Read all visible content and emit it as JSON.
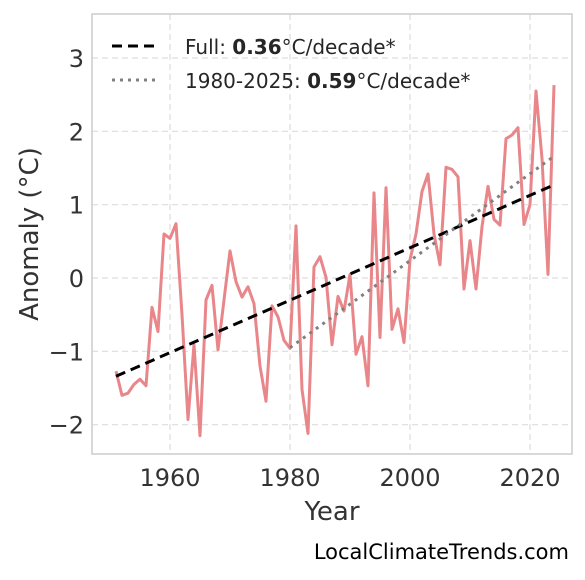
{
  "chart_data": {
    "type": "line",
    "title": "",
    "xlabel": "Year",
    "ylabel": "Anomaly (°C)",
    "xlim": [
      1947,
      2027
    ],
    "ylim": [
      -2.4,
      3.6
    ],
    "x_ticks": [
      1960,
      1980,
      2000,
      2020
    ],
    "y_ticks": [
      -2,
      -1,
      0,
      1,
      2,
      3
    ],
    "y_tick_labels": [
      "−2",
      "−1",
      "0",
      "1",
      "2",
      "3"
    ],
    "grid": true,
    "legend_position": "top-left",
    "series": [
      {
        "role": "anomaly",
        "color": "#e8868a",
        "x": [
          1951,
          1952,
          1953,
          1954,
          1955,
          1956,
          1957,
          1958,
          1959,
          1960,
          1961,
          1962,
          1963,
          1964,
          1965,
          1966,
          1967,
          1968,
          1969,
          1970,
          1971,
          1972,
          1973,
          1974,
          1975,
          1976,
          1977,
          1978,
          1979,
          1980,
          1981,
          1982,
          1983,
          1984,
          1985,
          1986,
          1987,
          1988,
          1989,
          1990,
          1991,
          1992,
          1993,
          1994,
          1995,
          1996,
          1997,
          1998,
          1999,
          2000,
          2001,
          2002,
          2003,
          2004,
          2005,
          2006,
          2007,
          2008,
          2009,
          2010,
          2011,
          2012,
          2013,
          2014,
          2015,
          2016,
          2017,
          2018,
          2019,
          2020,
          2021,
          2022,
          2023,
          2024
        ],
        "y": [
          -1.27,
          -1.6,
          -1.57,
          -1.45,
          -1.38,
          -1.47,
          -0.4,
          -0.73,
          0.6,
          0.54,
          0.74,
          -0.5,
          -1.93,
          -0.91,
          -2.15,
          -0.3,
          -0.1,
          -0.98,
          -0.3,
          0.37,
          -0.05,
          -0.26,
          -0.12,
          -0.35,
          -1.2,
          -1.68,
          -0.38,
          -0.53,
          -0.85,
          -0.96,
          0.71,
          -1.52,
          -2.12,
          0.15,
          0.29,
          0.01,
          -0.91,
          -0.25,
          -0.45,
          0.05,
          -1.04,
          -0.8,
          -1.47,
          1.16,
          -0.81,
          1.23,
          -0.7,
          -0.42,
          -0.88,
          0.25,
          0.6,
          1.18,
          1.42,
          0.6,
          0.18,
          1.51,
          1.48,
          1.38,
          -0.15,
          0.51,
          -0.15,
          0.7,
          1.25,
          0.8,
          0.72,
          1.9,
          1.95,
          2.05,
          0.73,
          1.0,
          2.55,
          1.63,
          0.05,
          2.63
        ]
      },
      {
        "role": "trend_full",
        "color": "#000000",
        "dash": "dashed",
        "x": [
          1951,
          2024
        ],
        "y": [
          -1.34,
          1.27
        ]
      },
      {
        "role": "trend_1980",
        "color": "#808080",
        "dash": "dotted",
        "x": [
          1980,
          2024
        ],
        "y": [
          -0.95,
          1.66
        ]
      }
    ],
    "legend": [
      {
        "prefix": "Full: ",
        "value": "0.36",
        "suffix": "°C/decade*"
      },
      {
        "prefix": "1980-2025: ",
        "value": "0.59",
        "suffix": "°C/decade*"
      }
    ]
  },
  "watermark": "LocalClimateTrends.com"
}
